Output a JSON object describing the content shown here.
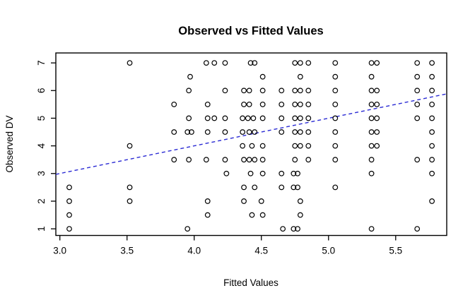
{
  "chart_data": {
    "type": "scatter",
    "title": "Observed vs Fitted Values",
    "xlabel": "Fitted Values",
    "ylabel": "Observed DV",
    "xlim": [
      2.97,
      5.88
    ],
    "ylim": [
      0.76,
      7.36
    ],
    "x_ticks": [
      3.0,
      3.5,
      4.0,
      4.5,
      5.0,
      5.5
    ],
    "x_tick_labels": [
      "3.0",
      "3.5",
      "4.0",
      "4.5",
      "5.0",
      "5.5"
    ],
    "y_ticks": [
      1,
      2,
      3,
      4,
      5,
      6,
      7
    ],
    "y_tick_labels": [
      "1",
      "2",
      "3",
      "4",
      "5",
      "6",
      "7"
    ],
    "grid": false,
    "legend_position": "none",
    "marker": {
      "shape": "open-circle",
      "stroke_color": "#000000",
      "fill": "none"
    },
    "reference_line": {
      "description": "identity line y = x",
      "style": "dashed",
      "color": "#2A2AD4",
      "x1": 2.97,
      "y1": 2.97,
      "x2": 5.88,
      "y2": 5.88
    },
    "points": [
      [
        3.52,
        7
      ],
      [
        4.09,
        7
      ],
      [
        4.15,
        7
      ],
      [
        4.23,
        7
      ],
      [
        4.42,
        7
      ],
      [
        4.45,
        7
      ],
      [
        4.75,
        7
      ],
      [
        4.79,
        7
      ],
      [
        4.85,
        7
      ],
      [
        5.05,
        7
      ],
      [
        5.32,
        7
      ],
      [
        5.36,
        7
      ],
      [
        5.66,
        7
      ],
      [
        5.77,
        7
      ],
      [
        3.97,
        6.5
      ],
      [
        4.51,
        6.5
      ],
      [
        4.79,
        6.5
      ],
      [
        5.05,
        6.5
      ],
      [
        5.32,
        6.5
      ],
      [
        5.66,
        6.5
      ],
      [
        5.77,
        6.5
      ],
      [
        3.96,
        6
      ],
      [
        4.23,
        6
      ],
      [
        4.37,
        6
      ],
      [
        4.41,
        6
      ],
      [
        4.51,
        6
      ],
      [
        4.65,
        6
      ],
      [
        4.75,
        6
      ],
      [
        4.79,
        6
      ],
      [
        4.85,
        6
      ],
      [
        5.05,
        6
      ],
      [
        5.32,
        6
      ],
      [
        5.36,
        6
      ],
      [
        5.66,
        6
      ],
      [
        5.77,
        6
      ],
      [
        3.85,
        5.5
      ],
      [
        4.1,
        5.5
      ],
      [
        4.37,
        5.5
      ],
      [
        4.41,
        5.5
      ],
      [
        4.51,
        5.5
      ],
      [
        4.65,
        5.5
      ],
      [
        4.75,
        5.5
      ],
      [
        4.79,
        5.5
      ],
      [
        4.85,
        5.5
      ],
      [
        5.05,
        5.5
      ],
      [
        5.32,
        5.5
      ],
      [
        5.36,
        5.5
      ],
      [
        5.66,
        5.5
      ],
      [
        5.77,
        5.5
      ],
      [
        3.96,
        5
      ],
      [
        4.1,
        5
      ],
      [
        4.15,
        5
      ],
      [
        4.23,
        5
      ],
      [
        4.36,
        5
      ],
      [
        4.4,
        5
      ],
      [
        4.44,
        5
      ],
      [
        4.51,
        5
      ],
      [
        4.65,
        5
      ],
      [
        4.75,
        5
      ],
      [
        4.79,
        5
      ],
      [
        4.85,
        5
      ],
      [
        5.05,
        5
      ],
      [
        5.32,
        5
      ],
      [
        5.36,
        5
      ],
      [
        5.66,
        5
      ],
      [
        5.77,
        5
      ],
      [
        3.85,
        4.5
      ],
      [
        3.95,
        4.5
      ],
      [
        3.98,
        4.5
      ],
      [
        4.1,
        4.5
      ],
      [
        4.23,
        4.5
      ],
      [
        4.36,
        4.5
      ],
      [
        4.41,
        4.5
      ],
      [
        4.45,
        4.5
      ],
      [
        4.65,
        4.5
      ],
      [
        4.75,
        4.5
      ],
      [
        4.79,
        4.5
      ],
      [
        4.85,
        4.5
      ],
      [
        5.05,
        4.5
      ],
      [
        5.32,
        4.5
      ],
      [
        5.36,
        4.5
      ],
      [
        5.77,
        4.5
      ],
      [
        3.52,
        4
      ],
      [
        4.36,
        4
      ],
      [
        4.43,
        4
      ],
      [
        4.51,
        4
      ],
      [
        4.75,
        4
      ],
      [
        4.79,
        4
      ],
      [
        4.85,
        4
      ],
      [
        5.05,
        4
      ],
      [
        5.32,
        4
      ],
      [
        5.36,
        4
      ],
      [
        5.77,
        4
      ],
      [
        3.85,
        3.5
      ],
      [
        3.96,
        3.5
      ],
      [
        4.09,
        3.5
      ],
      [
        4.23,
        3.5
      ],
      [
        4.37,
        3.5
      ],
      [
        4.41,
        3.5
      ],
      [
        4.45,
        3.5
      ],
      [
        4.51,
        3.5
      ],
      [
        4.75,
        3.5
      ],
      [
        4.85,
        3.5
      ],
      [
        5.05,
        3.5
      ],
      [
        5.32,
        3.5
      ],
      [
        5.66,
        3.5
      ],
      [
        5.77,
        3.5
      ],
      [
        4.24,
        3
      ],
      [
        4.42,
        3
      ],
      [
        4.51,
        3
      ],
      [
        4.65,
        3
      ],
      [
        4.74,
        3
      ],
      [
        4.77,
        3
      ],
      [
        5.32,
        3
      ],
      [
        5.77,
        3
      ],
      [
        3.07,
        2.5
      ],
      [
        3.52,
        2.5
      ],
      [
        4.37,
        2.5
      ],
      [
        4.45,
        2.5
      ],
      [
        4.65,
        2.5
      ],
      [
        4.74,
        2.5
      ],
      [
        4.77,
        2.5
      ],
      [
        5.05,
        2.5
      ],
      [
        3.07,
        2
      ],
      [
        3.52,
        2
      ],
      [
        4.1,
        2
      ],
      [
        4.37,
        2
      ],
      [
        4.5,
        2
      ],
      [
        4.79,
        2
      ],
      [
        5.77,
        2
      ],
      [
        3.07,
        1.5
      ],
      [
        4.1,
        1.5
      ],
      [
        4.43,
        1.5
      ],
      [
        4.51,
        1.5
      ],
      [
        4.79,
        1.5
      ],
      [
        3.07,
        1
      ],
      [
        3.95,
        1
      ],
      [
        4.66,
        1
      ],
      [
        4.74,
        1
      ],
      [
        4.77,
        1
      ],
      [
        5.32,
        1
      ],
      [
        5.66,
        1
      ]
    ]
  }
}
